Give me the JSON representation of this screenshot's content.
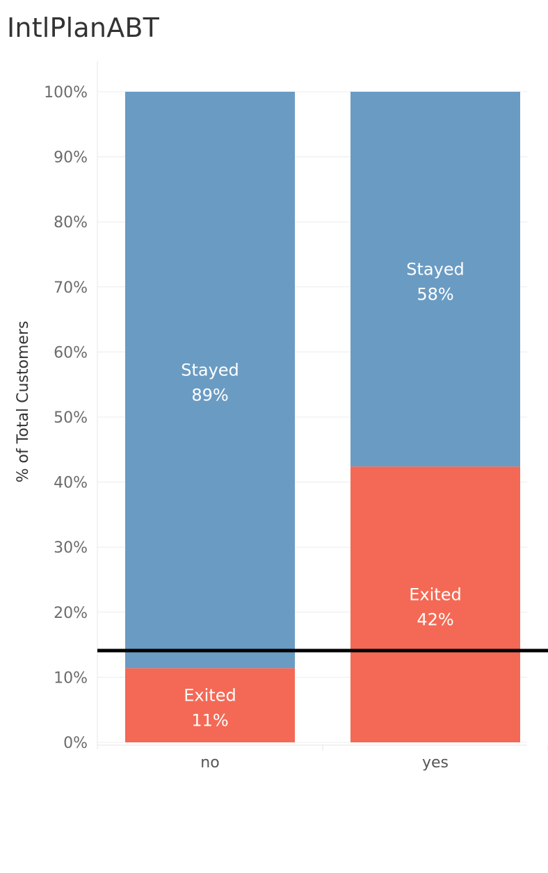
{
  "chart_data": {
    "type": "bar",
    "stacked": true,
    "title": "IntlPlanABT",
    "xlabel": "",
    "ylabel": "% of Total Customers",
    "categories": [
      "no",
      "yes"
    ],
    "series": [
      {
        "name": "Exited",
        "values": [
          11.4,
          42.4
        ],
        "labels": [
          "11%",
          "42%"
        ],
        "color": "#f46955"
      },
      {
        "name": "Stayed",
        "values": [
          88.6,
          57.6
        ],
        "labels": [
          "89%",
          "58%"
        ],
        "color": "#6a9bc3"
      }
    ],
    "ylim": [
      0,
      100
    ],
    "yticks": [
      "0%",
      "10%",
      "20%",
      "30%",
      "40%",
      "50%",
      "60%",
      "70%",
      "80%",
      "90%",
      "100%"
    ],
    "reference_line": {
      "value": 14.1,
      "color": "#000000"
    },
    "grid": true,
    "legend": "none"
  }
}
